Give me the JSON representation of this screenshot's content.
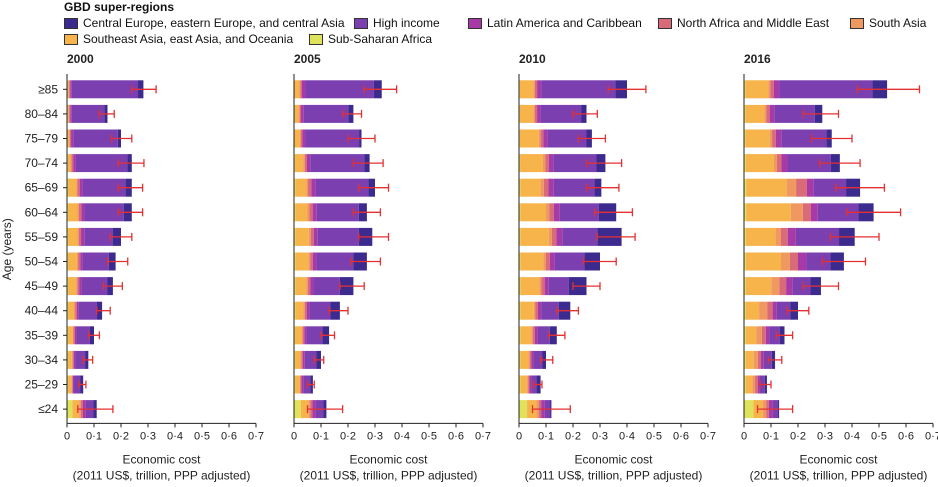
{
  "legend": {
    "title": "GBD super-regions",
    "items": [
      {
        "label": "Central Europe, eastern Europe, and central Asia",
        "color": "#3d2a8e"
      },
      {
        "label": "High income",
        "color": "#7b3fb0"
      },
      {
        "label": "Latin America and Caribbean",
        "color": "#a83aa8"
      },
      {
        "label": "North Africa and Middle East",
        "color": "#d96a78"
      },
      {
        "label": "South Asia",
        "color": "#ef9860"
      },
      {
        "label": "Southeast Asia, east Asia, and Oceania",
        "color": "#f6b44a"
      },
      {
        "label": "Sub-Saharan Africa",
        "color": "#dfe35c"
      }
    ]
  },
  "y_axis_label": "Age (years)",
  "x_axis_label_line1": "Economic cost",
  "x_axis_label_line2": "(2011 US$, trillion, PPP adjusted)",
  "chart_data": {
    "type": "bar",
    "orientation": "horizontal",
    "stacked": true,
    "categories": [
      "≥85",
      "80–84",
      "75–79",
      "70–74",
      "65–69",
      "60–64",
      "55–59",
      "50–54",
      "45–49",
      "40–44",
      "35–39",
      "30–34",
      "25–29",
      "≤24"
    ],
    "series_names": [
      "Sub-Saharan Africa",
      "Southeast Asia, east Asia, and Oceania",
      "South Asia",
      "North Africa and Middle East",
      "Latin America and Caribbean",
      "High income",
      "Central Europe, eastern Europe, and central Asia"
    ],
    "series_colors": [
      "#dfe35c",
      "#f6b44a",
      "#ef9860",
      "#d96a78",
      "#a83aa8",
      "#7b3fb0",
      "#3d2a8e"
    ],
    "xlim": [
      0,
      0.7
    ],
    "x_ticks": [
      "0",
      "0·1",
      "0·2",
      "0·3",
      "0·4",
      "0·5",
      "0·6",
      "0·7"
    ],
    "error_bar_color": "#e53030",
    "panels": [
      {
        "title": "2000",
        "rows": [
          {
            "values": [
              0.002,
              0.004,
              0.002,
              0.004,
              0.006,
              0.245,
              0.02
            ],
            "err": [
              0.24,
              0.33
            ]
          },
          {
            "values": [
              0.002,
              0.004,
              0.002,
              0.004,
              0.006,
              0.12,
              0.012
            ],
            "err": [
              0.12,
              0.175
            ]
          },
          {
            "values": [
              0.002,
              0.006,
              0.003,
              0.004,
              0.008,
              0.165,
              0.012
            ],
            "err": [
              0.165,
              0.24
            ]
          },
          {
            "values": [
              0.003,
              0.01,
              0.004,
              0.006,
              0.01,
              0.19,
              0.017
            ],
            "err": [
              0.19,
              0.285
            ]
          },
          {
            "values": [
              0.004,
              0.03,
              0.005,
              0.008,
              0.01,
              0.16,
              0.023
            ],
            "err": [
              0.19,
              0.28
            ]
          },
          {
            "values": [
              0.004,
              0.035,
              0.005,
              0.009,
              0.012,
              0.145,
              0.03
            ],
            "err": [
              0.19,
              0.28
            ]
          },
          {
            "values": [
              0.004,
              0.035,
              0.005,
              0.008,
              0.012,
              0.105,
              0.031
            ],
            "err": [
              0.16,
              0.24
            ]
          },
          {
            "values": [
              0.004,
              0.032,
              0.005,
              0.008,
              0.01,
              0.096,
              0.025
            ],
            "err": [
              0.15,
              0.225
            ]
          },
          {
            "values": [
              0.004,
              0.03,
              0.004,
              0.007,
              0.009,
              0.096,
              0.02
            ],
            "err": [
              0.135,
              0.205
            ]
          },
          {
            "values": [
              0.004,
              0.022,
              0.004,
              0.006,
              0.007,
              0.068,
              0.019
            ],
            "err": [
              0.11,
              0.16
            ]
          },
          {
            "values": [
              0.004,
              0.017,
              0.003,
              0.005,
              0.006,
              0.05,
              0.015
            ],
            "err": [
              0.08,
              0.12
            ]
          },
          {
            "values": [
              0.004,
              0.014,
              0.003,
              0.004,
              0.005,
              0.037,
              0.012
            ],
            "err": [
              0.06,
              0.095
            ]
          },
          {
            "values": [
              0.004,
              0.012,
              0.003,
              0.003,
              0.004,
              0.024,
              0.01
            ],
            "err": [
              0.045,
              0.07
            ]
          },
          {
            "values": [
              0.02,
              0.025,
              0.006,
              0.008,
              0.011,
              0.028,
              0.012
            ],
            "err": [
              0.04,
              0.17
            ]
          }
        ]
      },
      {
        "title": "2005",
        "rows": [
          {
            "values": [
              0.002,
              0.018,
              0.004,
              0.005,
              0.012,
              0.255,
              0.029
            ],
            "err": [
              0.26,
              0.38
            ]
          },
          {
            "values": [
              0.002,
              0.015,
              0.004,
              0.005,
              0.01,
              0.165,
              0.019
            ],
            "err": [
              0.18,
              0.25
            ]
          },
          {
            "values": [
              0.002,
              0.02,
              0.004,
              0.005,
              0.01,
              0.2,
              0.009
            ],
            "err": [
              0.2,
              0.3
            ]
          },
          {
            "values": [
              0.004,
              0.03,
              0.006,
              0.008,
              0.012,
              0.2,
              0.02
            ],
            "err": [
              0.22,
              0.33
            ]
          },
          {
            "values": [
              0.005,
              0.04,
              0.007,
              0.012,
              0.015,
              0.196,
              0.025
            ],
            "err": [
              0.24,
              0.35
            ]
          },
          {
            "values": [
              0.005,
              0.045,
              0.007,
              0.012,
              0.015,
              0.156,
              0.03
            ],
            "err": [
              0.22,
              0.32
            ]
          },
          {
            "values": [
              0.005,
              0.05,
              0.007,
              0.011,
              0.015,
              0.152,
              0.05
            ],
            "err": [
              0.24,
              0.35
            ]
          },
          {
            "values": [
              0.005,
              0.048,
              0.007,
              0.01,
              0.013,
              0.137,
              0.05
            ],
            "err": [
              0.21,
              0.32
            ]
          },
          {
            "values": [
              0.005,
              0.04,
              0.006,
              0.009,
              0.012,
              0.098,
              0.05
            ],
            "err": [
              0.17,
              0.26
            ]
          },
          {
            "values": [
              0.005,
              0.03,
              0.005,
              0.007,
              0.01,
              0.078,
              0.035
            ],
            "err": [
              0.13,
              0.2
            ]
          },
          {
            "values": [
              0.004,
              0.024,
              0.004,
              0.006,
              0.008,
              0.059,
              0.025
            ],
            "err": [
              0.1,
              0.15
            ]
          },
          {
            "values": [
              0.004,
              0.02,
              0.004,
              0.005,
              0.007,
              0.042,
              0.018
            ],
            "err": [
              0.075,
              0.11
            ]
          },
          {
            "values": [
              0.004,
              0.017,
              0.003,
              0.004,
              0.006,
              0.026,
              0.01
            ],
            "err": [
              0.05,
              0.075
            ]
          },
          {
            "values": [
              0.025,
              0.028,
              0.007,
              0.008,
              0.012,
              0.028,
              0.012
            ],
            "err": [
              0.05,
              0.18
            ]
          }
        ]
      },
      {
        "title": "2010",
        "rows": [
          {
            "values": [
              0.003,
              0.05,
              0.006,
              0.008,
              0.015,
              0.275,
              0.043
            ],
            "err": [
              0.33,
              0.47
            ]
          },
          {
            "values": [
              0.003,
              0.05,
              0.006,
              0.008,
              0.013,
              0.15,
              0.02
            ],
            "err": [
              0.2,
              0.29
            ]
          },
          {
            "values": [
              0.003,
              0.07,
              0.007,
              0.01,
              0.015,
              0.145,
              0.02
            ],
            "err": [
              0.22,
              0.32
            ]
          },
          {
            "values": [
              0.004,
              0.085,
              0.009,
              0.012,
              0.017,
              0.16,
              0.033
            ],
            "err": [
              0.25,
              0.38
            ]
          },
          {
            "values": [
              0.005,
              0.075,
              0.012,
              0.017,
              0.02,
              0.15,
              0.026
            ],
            "err": [
              0.25,
              0.37
            ]
          },
          {
            "values": [
              0.005,
              0.095,
              0.012,
              0.017,
              0.022,
              0.145,
              0.064
            ],
            "err": [
              0.28,
              0.42
            ]
          },
          {
            "values": [
              0.005,
              0.105,
              0.012,
              0.016,
              0.022,
              0.13,
              0.09
            ],
            "err": [
              0.29,
              0.43
            ]
          },
          {
            "values": [
              0.005,
              0.085,
              0.01,
              0.014,
              0.018,
              0.11,
              0.058
            ],
            "err": [
              0.24,
              0.36
            ]
          },
          {
            "values": [
              0.005,
              0.07,
              0.008,
              0.012,
              0.015,
              0.075,
              0.065
            ],
            "err": [
              0.2,
              0.3
            ]
          },
          {
            "values": [
              0.005,
              0.05,
              0.006,
              0.009,
              0.012,
              0.065,
              0.043
            ],
            "err": [
              0.14,
              0.22
            ]
          },
          {
            "values": [
              0.005,
              0.04,
              0.006,
              0.008,
              0.01,
              0.045,
              0.026
            ],
            "err": [
              0.11,
              0.17
            ]
          },
          {
            "values": [
              0.005,
              0.03,
              0.005,
              0.006,
              0.008,
              0.033,
              0.013
            ],
            "err": [
              0.08,
              0.125
            ]
          },
          {
            "values": [
              0.005,
              0.025,
              0.004,
              0.005,
              0.007,
              0.018,
              0.016
            ],
            "err": [
              0.055,
              0.085
            ]
          },
          {
            "values": [
              0.03,
              0.035,
              0.008,
              0.009,
              0.013,
              0.02,
              0.005
            ],
            "err": [
              0.05,
              0.19
            ]
          }
        ]
      },
      {
        "title": "2016",
        "rows": [
          {
            "values": [
              0.005,
              0.085,
              0.008,
              0.012,
              0.02,
              0.345,
              0.055
            ],
            "err": [
              0.42,
              0.65
            ]
          },
          {
            "values": [
              0.005,
              0.07,
              0.008,
              0.012,
              0.017,
              0.15,
              0.028
            ],
            "err": [
              0.22,
              0.35
            ]
          },
          {
            "values": [
              0.005,
              0.09,
              0.009,
              0.014,
              0.02,
              0.167,
              0.02
            ],
            "err": [
              0.25,
              0.4
            ]
          },
          {
            "values": [
              0.006,
              0.105,
              0.011,
              0.017,
              0.022,
              0.16,
              0.034
            ],
            "err": [
              0.28,
              0.43
            ]
          },
          {
            "values": [
              0.008,
              0.15,
              0.035,
              0.04,
              0.025,
              0.12,
              0.052
            ],
            "err": [
              0.34,
              0.52
            ]
          },
          {
            "values": [
              0.008,
              0.165,
              0.045,
              0.03,
              0.025,
              0.15,
              0.057
            ],
            "err": [
              0.38,
              0.58
            ]
          },
          {
            "values": [
              0.007,
              0.11,
              0.02,
              0.025,
              0.03,
              0.16,
              0.058
            ],
            "err": [
              0.32,
              0.5
            ]
          },
          {
            "values": [
              0.007,
              0.13,
              0.033,
              0.03,
              0.03,
              0.09,
              0.05
            ],
            "err": [
              0.29,
              0.45
            ]
          },
          {
            "values": [
              0.006,
              0.095,
              0.03,
              0.025,
              0.025,
              0.065,
              0.039
            ],
            "err": [
              0.22,
              0.35
            ]
          },
          {
            "values": [
              0.006,
              0.05,
              0.03,
              0.02,
              0.015,
              0.05,
              0.029
            ],
            "err": [
              0.16,
              0.24
            ]
          },
          {
            "values": [
              0.006,
              0.04,
              0.02,
              0.015,
              0.012,
              0.04,
              0.017
            ],
            "err": [
              0.12,
              0.18
            ]
          },
          {
            "values": [
              0.006,
              0.03,
              0.015,
              0.012,
              0.01,
              0.03,
              0.012
            ],
            "err": [
              0.09,
              0.14
            ]
          },
          {
            "values": [
              0.006,
              0.025,
              0.01,
              0.01,
              0.008,
              0.018,
              0.008
            ],
            "err": [
              0.06,
              0.1
            ]
          },
          {
            "values": [
              0.035,
              0.035,
              0.012,
              0.01,
              0.014,
              0.02,
              0.004
            ],
            "err": [
              0.05,
              0.18
            ]
          }
        ]
      }
    ]
  }
}
